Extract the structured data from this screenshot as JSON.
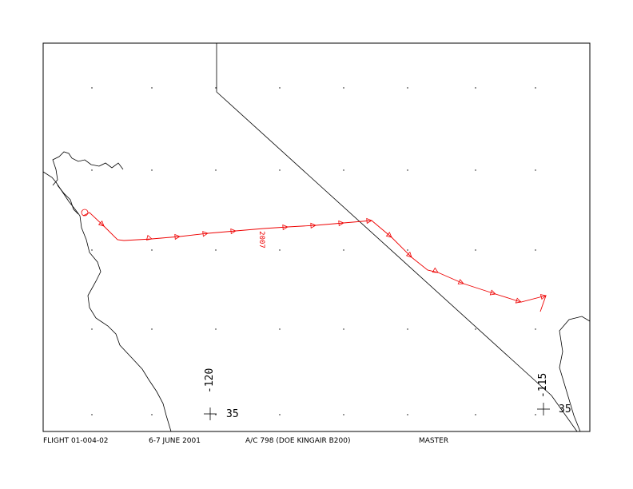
{
  "footer": {
    "flight": "FLIGHT 01-004-02",
    "date": "6-7 JUNE 2001",
    "aircraft": "A/C 798 (DOE KINGAIR B200)",
    "status": "MASTER"
  },
  "map_labels": {
    "lon_west": "-120",
    "lat_west": "35",
    "lon_east": "-115",
    "lat_east": "35",
    "track_label": "2007"
  }
}
